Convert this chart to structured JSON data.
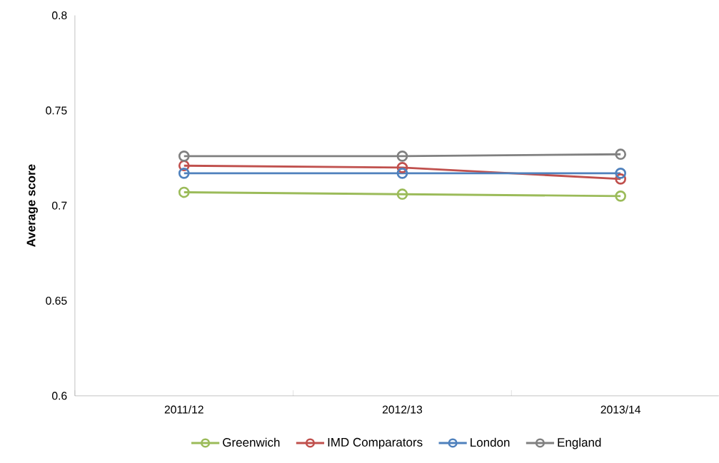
{
  "chart_data": {
    "type": "line",
    "ylabel": "Average score",
    "categories": [
      "2011/12",
      "2012/13",
      "2013/14"
    ],
    "series": [
      {
        "name": "Greenwich",
        "color": "#9bbb59",
        "values": [
          0.707,
          0.706,
          0.705
        ]
      },
      {
        "name": "IMD Comparators",
        "color": "#c0504d",
        "values": [
          0.721,
          0.72,
          0.714
        ]
      },
      {
        "name": "London",
        "color": "#4f81bd",
        "values": [
          0.717,
          0.717,
          0.717
        ]
      },
      {
        "name": "England",
        "color": "#808080",
        "values": [
          0.726,
          0.726,
          0.727
        ]
      }
    ],
    "ylim": [
      0.6,
      0.8
    ],
    "yticks": [
      0.6,
      0.65,
      0.7,
      0.75,
      0.8
    ],
    "grid": false,
    "legend": "bottom",
    "marker": "circle",
    "line_style": "solid"
  }
}
